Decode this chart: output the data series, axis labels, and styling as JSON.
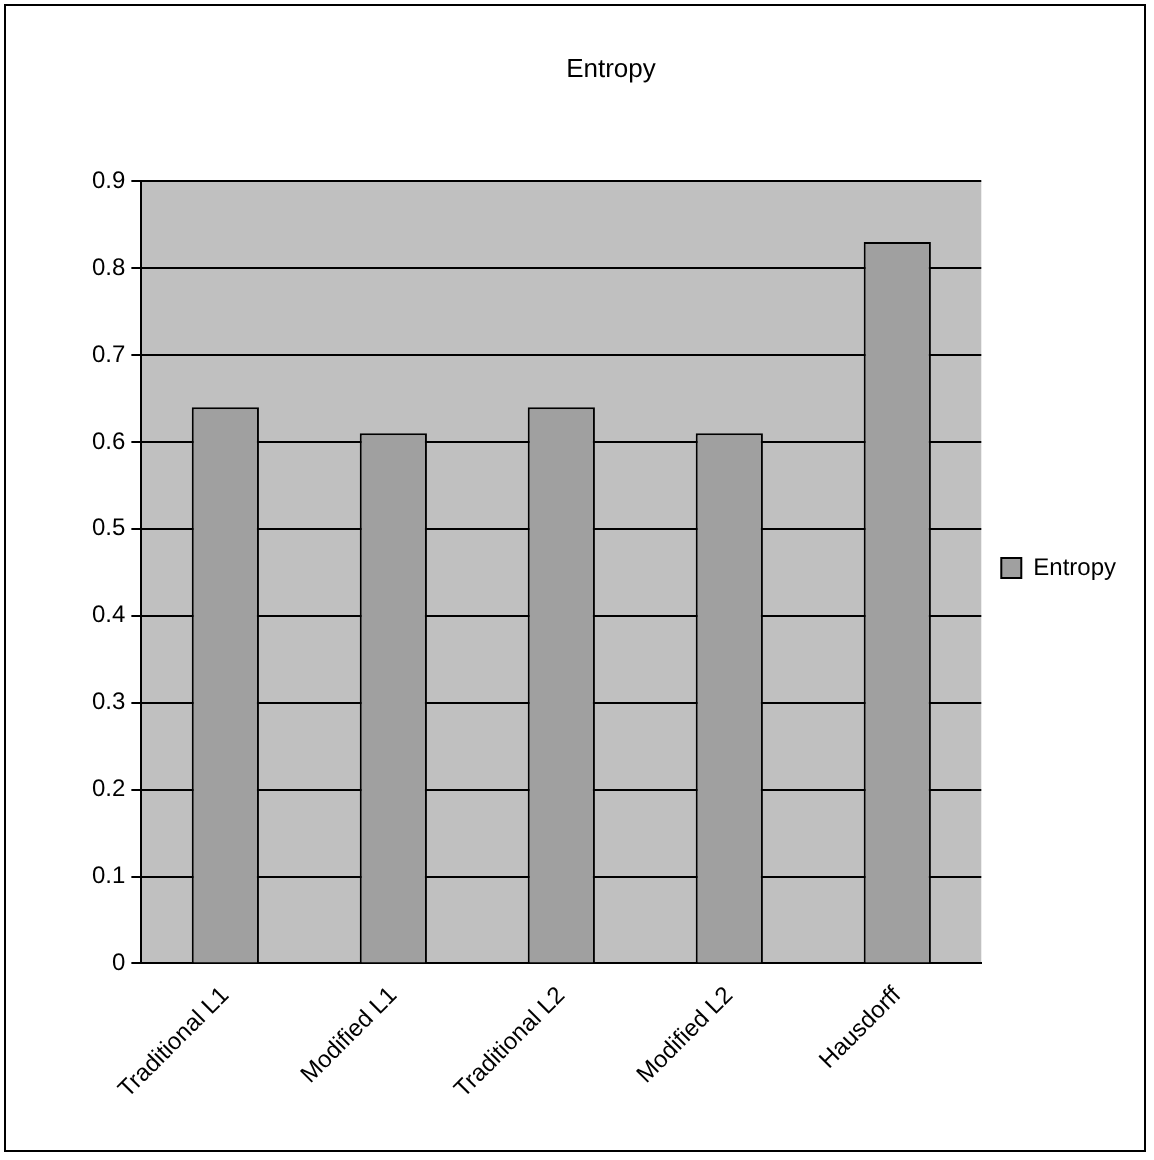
{
  "chart_data": {
    "type": "bar",
    "title": "Entropy",
    "categories": [
      "Traditional L1",
      "Modified L1",
      "Traditional L2",
      "Modified L2",
      "Hausdorff"
    ],
    "series": [
      {
        "name": "Entropy",
        "color": "#a0a0a0",
        "values": [
          0.64,
          0.61,
          0.64,
          0.61,
          0.83
        ]
      }
    ],
    "ylim": [
      0,
      0.9
    ],
    "yticks": [
      0,
      0.1,
      0.2,
      0.3,
      0.4,
      0.5,
      0.6,
      0.7,
      0.8,
      0.9
    ],
    "grid": "y",
    "legend": "right"
  }
}
